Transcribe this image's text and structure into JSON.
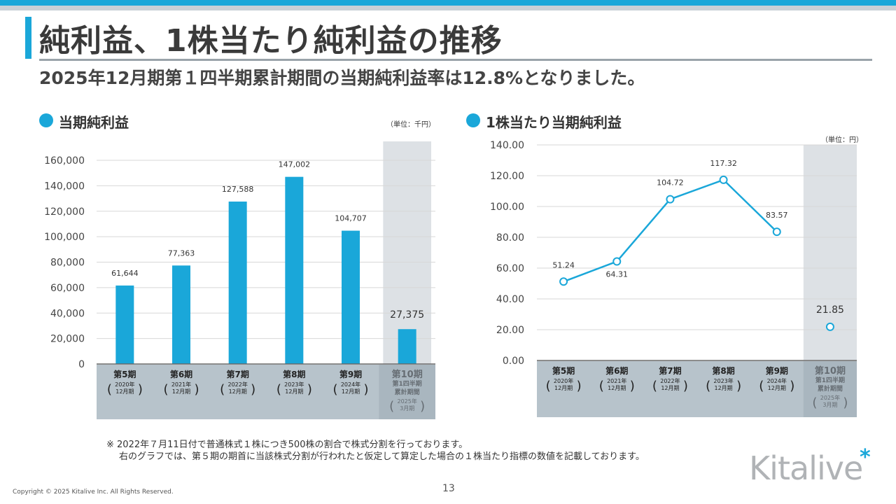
{
  "title": "純利益、1株当たり純利益の推移",
  "subtitle": "2025年12月期第１四半期累計期間の当期純利益率は12.8%となりました。",
  "left_section_title": "当期純利益",
  "right_section_title": "1株当たり当期純利益",
  "left_unit": "（単位：千円）",
  "right_unit": "（単位：円）",
  "note_line1": "※ 2022年７月11日付で普通株式１株につき500株の割合で株式分割を行っております。",
  "note_line2": "右のグラフでは、第５期の期首に当該株式分割が行われたと仮定して算定した場合の１株当たり指標の数値を記載しております。",
  "copyright": "Copyright © 2025 Kitalive Inc. All Rights Reserved.",
  "page_number": "13",
  "logo_text": "Kitalive",
  "colors": {
    "accent": "#1aa7d9",
    "highlight_band": "#dde1e5",
    "category_band": "#b7c3cb"
  },
  "chart_data": [
    {
      "type": "bar",
      "title": "当期純利益",
      "unit": "（単位：千円）",
      "categories": [
        {
          "term": "第5期",
          "sub": [
            "2020年",
            "12月期"
          ]
        },
        {
          "term": "第6期",
          "sub": [
            "2021年",
            "12月期"
          ]
        },
        {
          "term": "第7期",
          "sub": [
            "2022年",
            "12月期"
          ]
        },
        {
          "term": "第8期",
          "sub": [
            "2023年",
            "12月期"
          ]
        },
        {
          "term": "第9期",
          "sub": [
            "2024年",
            "12月期"
          ]
        },
        {
          "term": "第10期",
          "sub2": [
            "第1四半期",
            "累計期間"
          ],
          "sub": [
            "2025年",
            "3月期"
          ]
        }
      ],
      "values": [
        61644,
        77363,
        127588,
        147002,
        104707,
        27375
      ],
      "value_labels": [
        "61,644",
        "77,363",
        "127,588",
        "147,002",
        "104,707",
        "27,375"
      ],
      "ylim": [
        0,
        160000
      ],
      "yticks": [
        0,
        20000,
        40000,
        60000,
        80000,
        100000,
        120000,
        140000,
        160000
      ],
      "ytick_labels": [
        "0",
        "20,000",
        "40,000",
        "60,000",
        "80,000",
        "100,000",
        "120,000",
        "140,000",
        "160,000"
      ],
      "grid": true,
      "highlight_last": true
    },
    {
      "type": "line",
      "title": "1株当たり当期純利益",
      "unit": "（単位：円）",
      "categories": [
        {
          "term": "第5期",
          "sub": [
            "2020年",
            "12月期"
          ]
        },
        {
          "term": "第6期",
          "sub": [
            "2021年",
            "12月期"
          ]
        },
        {
          "term": "第7期",
          "sub": [
            "2022年",
            "12月期"
          ]
        },
        {
          "term": "第8期",
          "sub": [
            "2023年",
            "12月期"
          ]
        },
        {
          "term": "第9期",
          "sub": [
            "2024年",
            "12月期"
          ]
        },
        {
          "term": "第10期",
          "sub2": [
            "第1四半期",
            "累計期間"
          ],
          "sub": [
            "2025年",
            "3月期"
          ]
        }
      ],
      "values": [
        51.24,
        64.31,
        104.72,
        117.32,
        83.57,
        21.85
      ],
      "value_labels": [
        "51.24",
        "64.31",
        "104.72",
        "117.32",
        "83.57",
        "21.85"
      ],
      "label_position": [
        "above",
        "below",
        "above",
        "above",
        "above",
        "above"
      ],
      "connected_points": 5,
      "ylim": [
        0,
        140
      ],
      "yticks": [
        0,
        20,
        40,
        60,
        80,
        100,
        120,
        140
      ],
      "ytick_labels": [
        "0.00",
        "20.00",
        "40.00",
        "60.00",
        "80.00",
        "100.00",
        "120.00",
        "140.00"
      ],
      "grid": true,
      "highlight_last": true
    }
  ]
}
